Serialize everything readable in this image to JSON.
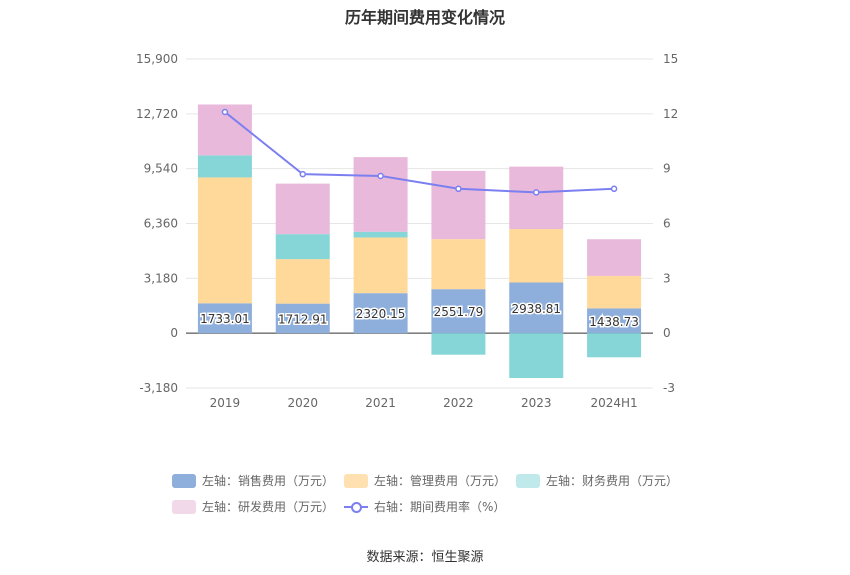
{
  "title": "历年期间费用变化情况",
  "source": "数据来源：恒生聚源",
  "legend": [
    {
      "label": "左轴：销售费用（万元）",
      "color": "#8eaedb"
    },
    {
      "label": "左轴：管理费用（万元）",
      "color": "#ffe0b0"
    },
    {
      "label": "左轴：财务费用（万元）",
      "color": "#bfe9ea"
    },
    {
      "label": "左轴：研发费用（万元）",
      "color": "#f2d9ea"
    },
    {
      "label": "右轴：期间费用率（%）",
      "color": "#7b7ff0"
    }
  ],
  "chart_data": {
    "type": "bar",
    "stacked": true,
    "categories": [
      "2019",
      "2020",
      "2021",
      "2022",
      "2023",
      "2024H1"
    ],
    "left_axis": {
      "min": -3180,
      "max": 15900,
      "ticks": [
        "-3,180",
        "0",
        "3,180",
        "6,360",
        "9,540",
        "12,720",
        "15,900"
      ]
    },
    "right_axis": {
      "min": -3,
      "max": 15,
      "ticks": [
        "-3",
        "0",
        "3",
        "6",
        "9",
        "12",
        "15"
      ]
    },
    "series": [
      {
        "name": "左轴：销售费用（万元）",
        "axis": "left",
        "color": "#8eaedb",
        "values": [
          1733.01,
          1712.91,
          2320.15,
          2551.79,
          2938.81,
          1438.73
        ],
        "labels": [
          "1733.01",
          "1712.91",
          "2320.15",
          "2551.79",
          "2938.81",
          "1438.73"
        ]
      },
      {
        "name": "左轴：管理费用（万元）",
        "axis": "left",
        "color": "#ffd999",
        "values": [
          7300,
          2580,
          3230,
          2900,
          3100,
          1880
        ]
      },
      {
        "name": "左轴：财务费用（万元）",
        "axis": "left",
        "color": "#86d6d8",
        "values": [
          1280,
          1450,
          330,
          -1250,
          -2600,
          -1400
        ]
      },
      {
        "name": "左轴：研发费用（万元）",
        "axis": "left",
        "color": "#e8b9da",
        "values": [
          2950,
          2930,
          4330,
          3960,
          3620,
          2130
        ]
      },
      {
        "name": "右轴：期间费用率（%）",
        "axis": "right",
        "type": "line",
        "color": "#7b7ff0",
        "values": [
          12.1,
          8.7,
          8.6,
          7.9,
          7.7,
          7.9
        ]
      }
    ],
    "grid": true,
    "legend_position": "bottom"
  }
}
